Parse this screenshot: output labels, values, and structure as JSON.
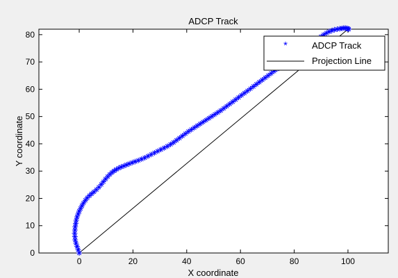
{
  "chart_data": {
    "type": "scatter",
    "title": "ADCP Track",
    "xlabel": "X coordinate",
    "ylabel": "Y coordinate",
    "xlim": [
      -15,
      115
    ],
    "ylim": [
      0,
      82
    ],
    "xticks": [
      0,
      20,
      40,
      60,
      80,
      100
    ],
    "yticks": [
      0,
      10,
      20,
      30,
      40,
      50,
      60,
      70,
      80
    ],
    "grid": false,
    "legend_position": "top-right",
    "legend": [
      {
        "label": "ADCP Track",
        "marker": "*",
        "color": "#0000ff"
      },
      {
        "label": "Projection Line",
        "line": "solid",
        "color": "#000000"
      }
    ],
    "series": [
      {
        "name": "ADCP Track",
        "style": "markers",
        "marker": "*",
        "color": "#0000ff",
        "x": [
          0,
          -0.4,
          -0.8,
          -1.2,
          -1.5,
          -1.6,
          -1.7,
          -1.6,
          -1.5,
          -1.3,
          -1.1,
          -0.8,
          -0.4,
          0.0,
          0.5,
          1.0,
          1.6,
          2.3,
          3.0,
          3.8,
          4.6,
          5.5,
          6.4,
          7.3,
          8.2,
          9.0,
          9.8,
          10.6,
          11.4,
          12.2,
          13.0,
          13.8,
          14.7,
          15.6,
          16.6,
          17.6,
          18.6,
          19.7,
          20.8,
          22.0,
          23.2,
          24.4,
          25.6,
          26.8,
          28.0,
          29.2,
          30.4,
          31.6,
          32.8,
          34.0,
          35.1,
          36.2,
          37.3,
          38.4,
          39.5,
          40.6,
          41.7,
          42.8,
          43.9,
          45.0,
          46.1,
          47.2,
          48.3,
          49.4,
          50.5,
          51.6,
          52.7,
          53.8,
          54.9,
          56.0,
          57.1,
          58.2,
          59.3,
          60.4,
          61.5,
          62.6,
          63.7,
          64.8,
          65.9,
          67.0,
          68.1,
          69.2,
          70.3,
          71.4,
          72.5,
          73.6,
          74.7,
          75.8,
          76.9,
          78.0,
          79.1,
          80.2,
          81.3,
          82.4,
          83.5,
          84.6,
          85.7,
          86.8,
          87.9,
          89.0,
          90.0,
          91.0,
          92.0,
          93.0,
          94.0,
          95.0,
          96.0,
          97.0,
          97.8,
          98.4,
          99.0,
          99.5,
          100.0,
          100.3
        ],
        "y": [
          0,
          1.2,
          2.4,
          3.6,
          4.8,
          6.0,
          7.2,
          8.4,
          9.6,
          10.8,
          12.0,
          13.2,
          14.3,
          15.3,
          16.3,
          17.3,
          18.3,
          19.3,
          20.2,
          21.0,
          21.7,
          22.4,
          23.2,
          24.1,
          25.1,
          26.1,
          27.1,
          28.0,
          28.8,
          29.5,
          30.1,
          30.6,
          31.1,
          31.5,
          31.9,
          32.3,
          32.7,
          33.1,
          33.5,
          33.9,
          34.4,
          34.9,
          35.5,
          36.1,
          36.7,
          37.3,
          37.9,
          38.5,
          39.1,
          39.8,
          40.5,
          41.3,
          42.1,
          42.9,
          43.7,
          44.5,
          45.2,
          45.9,
          46.6,
          47.3,
          48.0,
          48.7,
          49.4,
          50.1,
          50.8,
          51.5,
          52.2,
          53.0,
          53.8,
          54.6,
          55.4,
          56.2,
          57.0,
          57.8,
          58.6,
          59.4,
          60.2,
          61.0,
          61.8,
          62.6,
          63.4,
          64.2,
          65.0,
          65.8,
          66.6,
          67.4,
          68.2,
          69.0,
          69.8,
          70.6,
          71.4,
          72.2,
          73.0,
          73.8,
          74.6,
          75.4,
          76.2,
          77.0,
          77.8,
          78.6,
          79.3,
          80.0,
          80.6,
          81.1,
          81.5,
          81.8,
          82.0,
          82.2,
          82.3,
          82.4,
          82.4,
          82.3,
          82.2,
          82.0
        ]
      },
      {
        "name": "Projection Line",
        "style": "line",
        "color": "#000000",
        "x": [
          0,
          100
        ],
        "y": [
          0,
          82
        ]
      }
    ]
  }
}
